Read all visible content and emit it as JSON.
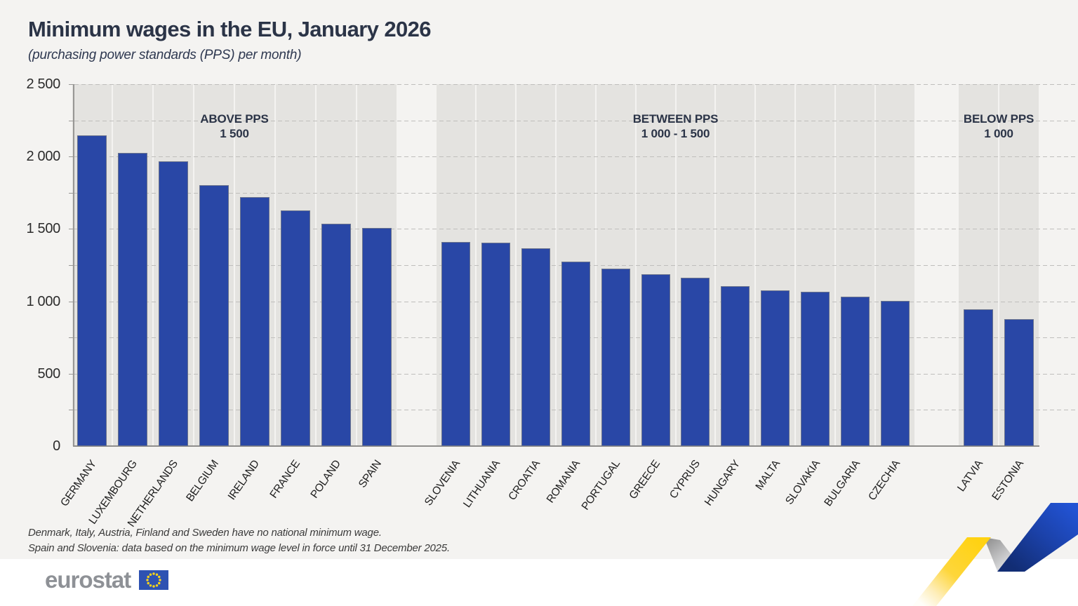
{
  "chart_data": {
    "type": "bar",
    "title": "Minimum wages in the EU, January 2026",
    "subtitle": "(purchasing power standards (PPS) per month)",
    "unit": "PPS per month",
    "ylim": [
      0,
      2500
    ],
    "gridline_interval": 250,
    "grid": "dashed horizontal",
    "ytick_labels": [
      {
        "value": 2500,
        "label": "2 500"
      },
      {
        "value": 2000,
        "label": "2 000"
      },
      {
        "value": 1500,
        "label": "1 500"
      },
      {
        "value": 1000,
        "label": "1 000"
      },
      {
        "value": 500,
        "label": "500"
      },
      {
        "value": 0,
        "label": "0"
      }
    ],
    "groups": [
      {
        "label": [
          "ABOVE PPS",
          "1 500"
        ],
        "bars": [
          {
            "country": "GERMANY",
            "value": 2146
          },
          {
            "country": "LUXEMBOURG",
            "value": 2025
          },
          {
            "country": "NETHERLANDS",
            "value": 1968
          },
          {
            "country": "BELGIUM",
            "value": 1801
          },
          {
            "country": "IRELAND",
            "value": 1722
          },
          {
            "country": "FRANCE",
            "value": 1628
          },
          {
            "country": "POLAND",
            "value": 1537
          },
          {
            "country": "SPAIN",
            "value": 1508
          }
        ]
      },
      {
        "label": [
          "BETWEEN PPS",
          "1 000 - 1 500"
        ],
        "bars": [
          {
            "country": "SLOVENIA",
            "value": 1410
          },
          {
            "country": "LITHUANIA",
            "value": 1404
          },
          {
            "country": "CROATIA",
            "value": 1368
          },
          {
            "country": "ROMANIA",
            "value": 1273
          },
          {
            "country": "PORTUGAL",
            "value": 1226
          },
          {
            "country": "GREECE",
            "value": 1185
          },
          {
            "country": "CYPRUS",
            "value": 1161
          },
          {
            "country": "HUNGARY",
            "value": 1103
          },
          {
            "country": "MALTA",
            "value": 1075
          },
          {
            "country": "SLOVAKIA",
            "value": 1068
          },
          {
            "country": "BULGARIA",
            "value": 1030
          },
          {
            "country": "CZECHIA",
            "value": 1001
          }
        ]
      },
      {
        "label": [
          "BELOW PPS",
          "1 000"
        ],
        "bars": [
          {
            "country": "LATVIA",
            "value": 944
          },
          {
            "country": "ESTONIA",
            "value": 875
          }
        ]
      }
    ]
  },
  "footnotes": [
    "Denmark, Italy, Austria, Finland and Sweden have no national minimum wage.",
    "Spain and Slovenia: data based on the minimum wage level in force until 31 December 2025."
  ],
  "logo": {
    "wordmark": "eurostat",
    "flag_stars": 12
  },
  "colors": {
    "bar_blue": "#2947a6",
    "band_gray": "#e4e3e0",
    "page_bg": "#f4f3f1",
    "title_navy": "#2b3447",
    "flag_blue": "#2e52b2",
    "star_yellow": "#ffd617",
    "ribbon_yellow": "#ffd212",
    "ribbon_blue": "#2253d4"
  }
}
